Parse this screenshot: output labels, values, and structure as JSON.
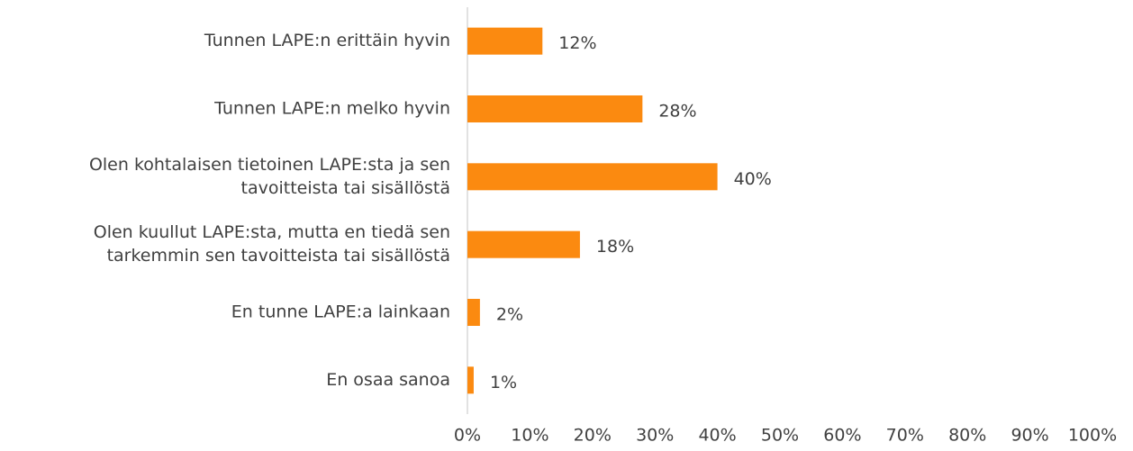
{
  "chart_data": {
    "type": "bar",
    "orientation": "horizontal",
    "categories": [
      [
        "Tunnen LAPE:n erittäin hyvin"
      ],
      [
        "Tunnen LAPE:n melko hyvin"
      ],
      [
        "Olen kohtalaisen tietoinen LAPE:sta ja sen",
        "tavoitteista tai sisällöstä"
      ],
      [
        "Olen kuullut LAPE:sta, mutta en tiedä sen",
        "tarkemmin sen tavoitteista tai sisällöstä"
      ],
      [
        "En tunne LAPE:a lainkaan"
      ],
      [
        "En osaa sanoa"
      ]
    ],
    "values": [
      12,
      28,
      40,
      18,
      2,
      1
    ],
    "value_labels": [
      "12%",
      "28%",
      "40%",
      "18%",
      "2%",
      "1%"
    ],
    "color": "#fb8a10",
    "xlim": [
      0,
      100
    ],
    "xticks": [
      {
        "value": 0,
        "label": "0%"
      },
      {
        "value": 10,
        "label": "10%"
      },
      {
        "value": 20,
        "label": "20%"
      },
      {
        "value": 30,
        "label": "30%"
      },
      {
        "value": 40,
        "label": "40%"
      },
      {
        "value": 50,
        "label": "50%"
      },
      {
        "value": 60,
        "label": "60%"
      },
      {
        "value": 70,
        "label": "70%"
      },
      {
        "value": 80,
        "label": "80%"
      },
      {
        "value": 90,
        "label": "90%"
      },
      {
        "value": 100,
        "label": "100%"
      }
    ],
    "grid": false
  }
}
